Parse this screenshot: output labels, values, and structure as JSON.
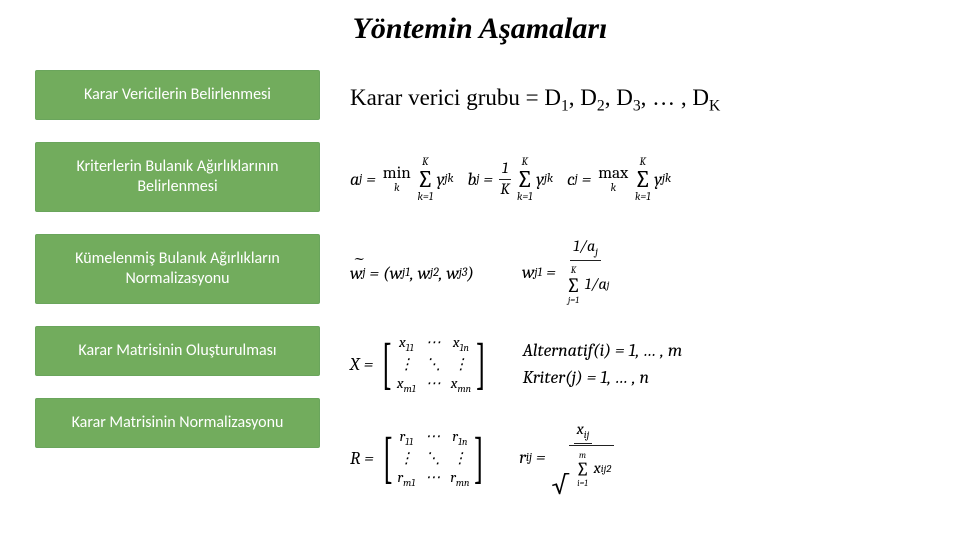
{
  "title": {
    "text": "Yöntemin Aşamaları",
    "fontsize_pt": 30,
    "color": "#000000",
    "italic": true,
    "bold": true
  },
  "colors": {
    "step_box_bg": "#72ac5d",
    "step_box_fg": "#ffffff",
    "background": "#ffffff",
    "text": "#000000"
  },
  "steps": [
    {
      "label": "Karar Vericilerin Belirlenmesi",
      "fontsize_pt": 16
    },
    {
      "label": "Kriterlerin Bulanık Ağırlıklarının Belirlenmesi",
      "fontsize_pt": 16
    },
    {
      "label": "Kümelenmiş Bulanık Ağırlıkların Normalizasyonu",
      "fontsize_pt": 16
    },
    {
      "label": "Karar Matrisinin Oluşturulması",
      "fontsize_pt": 16
    },
    {
      "label": "Karar Matrisinin Normalizasyonu",
      "fontsize_pt": 16
    }
  ],
  "formulas": {
    "decision_group": {
      "prefix": "Karar verici grubu = D",
      "indices": [
        "1",
        "2",
        "3"
      ],
      "ellipsis": "…",
      "last_index": "K",
      "fontsize_pt": 23
    },
    "fuzzy_weights": {
      "a": {
        "lhs": "a",
        "sub": "j",
        "op": "min",
        "op_sub": "k",
        "sum_from": "k=1",
        "sum_to": "K",
        "term": "y",
        "term_sub": "jk"
      },
      "b": {
        "lhs": "b",
        "sub": "j",
        "frac_num": "1",
        "frac_den": "K",
        "sum_from": "k=1",
        "sum_to": "K",
        "term": "y",
        "term_sub": "jk"
      },
      "c": {
        "lhs": "c",
        "sub": "j",
        "op": "max",
        "op_sub": "k",
        "sum_from": "k=1",
        "sum_to": "K",
        "term": "y",
        "term_sub": "jk"
      },
      "fontsize_pt": 18
    },
    "normalized_weights": {
      "vector": {
        "lhs": "w",
        "tilde": true,
        "sub": "j",
        "components": [
          "w_{j1}",
          "w_{j2}",
          "w_{j3}"
        ]
      },
      "component": {
        "lhs": "w",
        "lhs_sub": "j1",
        "num": "1/a_j",
        "den_sum_from": "j=1",
        "den_sum_to": "K",
        "den_term": "1/a_j"
      },
      "fontsize_pt": 18
    },
    "decision_matrix": {
      "name": "X",
      "cells": [
        [
          "x_{11}",
          "⋯",
          "x_{1n}"
        ],
        [
          "⋮",
          "⋱",
          "⋮"
        ],
        [
          "x_{m1}",
          "⋯",
          "x_{mn}"
        ]
      ],
      "alt_label": "Alternatif(i) = 1, … , m",
      "crit_label": "Kriter(j) = 1, … , n",
      "fontsize_pt": 18
    },
    "normalization": {
      "matrix_name": "R",
      "cells": [
        [
          "r_{11}",
          "⋯",
          "r_{1n}"
        ],
        [
          "⋮",
          "⋱",
          "⋮"
        ],
        [
          "r_{m1}",
          "⋯",
          "r_{mn}"
        ]
      ],
      "element": {
        "lhs": "r",
        "lhs_sub": "ij",
        "num": "x_{ij}",
        "den_sum_from": "i=1",
        "den_sum_to": "m",
        "den_term": "x_{ij}^2"
      },
      "fontsize_pt": 18
    }
  }
}
